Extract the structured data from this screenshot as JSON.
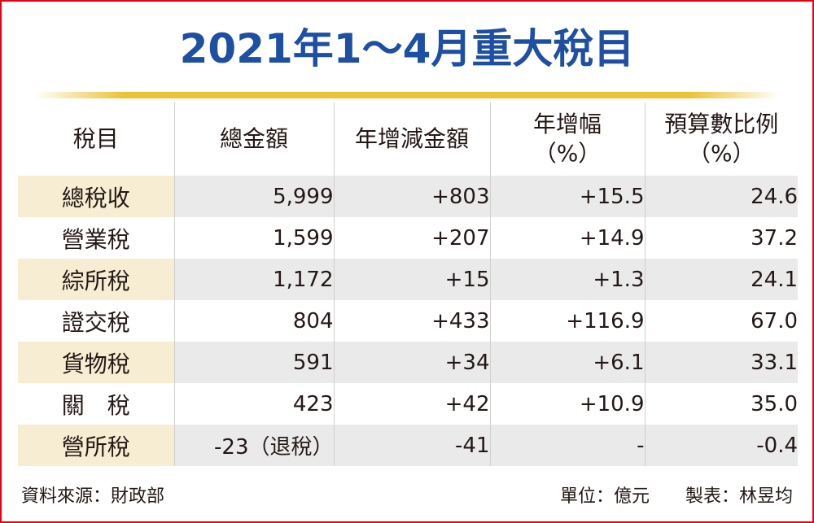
{
  "title": "2021年1～4月重大稅目",
  "columns": [
    {
      "line1": "稅目",
      "line2": ""
    },
    {
      "line1": "總金額",
      "line2": ""
    },
    {
      "line1": "年增減金額",
      "line2": ""
    },
    {
      "line1": "年增幅",
      "line2": "（%）"
    },
    {
      "line1": "預算數比例",
      "line2": "（%）"
    }
  ],
  "rows": [
    {
      "name": "總稅收",
      "total": "5,999",
      "change": "+803",
      "growth": "+15.5",
      "budget": "24.6"
    },
    {
      "name": "營業稅",
      "total": "1,599",
      "change": "+207",
      "growth": "+14.9",
      "budget": "37.2"
    },
    {
      "name": "綜所稅",
      "total": "1,172",
      "change": "+15",
      "growth": "+1.3",
      "budget": "24.1"
    },
    {
      "name": "證交稅",
      "total": "804",
      "change": "+433",
      "growth": "+116.9",
      "budget": "67.0"
    },
    {
      "name": "貨物稅",
      "total": "591",
      "change": "+34",
      "growth": "+6.1",
      "budget": "33.1"
    },
    {
      "name": "關　稅",
      "total": "423",
      "change": "+42",
      "growth": "+10.9",
      "budget": "35.0"
    },
    {
      "name": "營所稅",
      "total": "-23（退稅）",
      "change": "-41",
      "growth": "-",
      "budget": "-0.4"
    }
  ],
  "footer": {
    "source": "資料來源：財政部",
    "unit": "單位：億元",
    "maker": "製表：林昱均"
  },
  "colors": {
    "title": "#1d4fa3",
    "border": "#e60012",
    "gold_line": "#eec236",
    "row_shade": "#eaeaeb",
    "name_shade": "#f7edd2"
  }
}
